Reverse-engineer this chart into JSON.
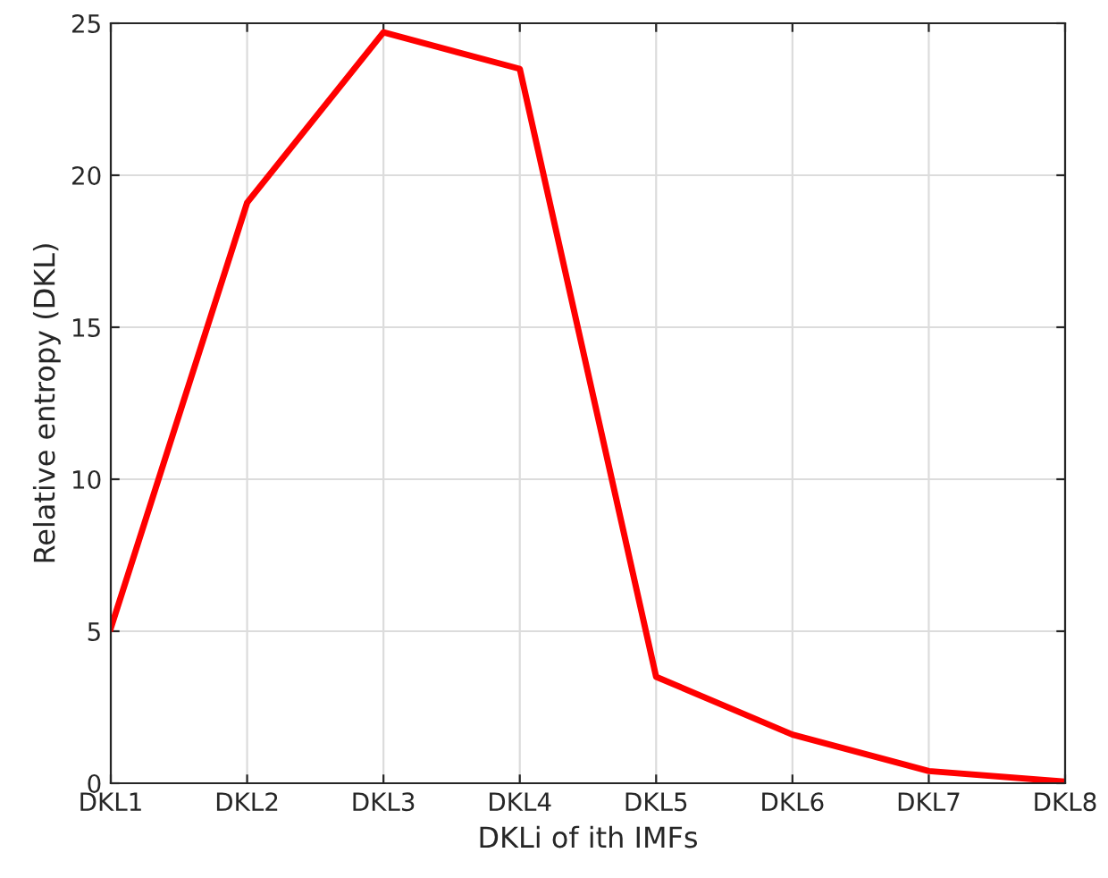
{
  "chart_data": {
    "type": "line",
    "xlabel": "DKLi of ith IMFs",
    "ylabel": "Relative entropy (DKL)",
    "categories": [
      "DKL1",
      "DKL2",
      "DKL3",
      "DKL4",
      "DKL5",
      "DKL6",
      "DKL7",
      "DKL8"
    ],
    "series": [
      {
        "color": "#ff0000",
        "values": [
          5.1,
          19.1,
          24.7,
          23.5,
          3.5,
          1.6,
          0.4,
          0.05
        ]
      }
    ],
    "ylim": [
      0,
      25
    ],
    "yticks": [
      0,
      5,
      10,
      15,
      20,
      25
    ],
    "grid": true,
    "line_style": "solid",
    "marker": "none"
  }
}
